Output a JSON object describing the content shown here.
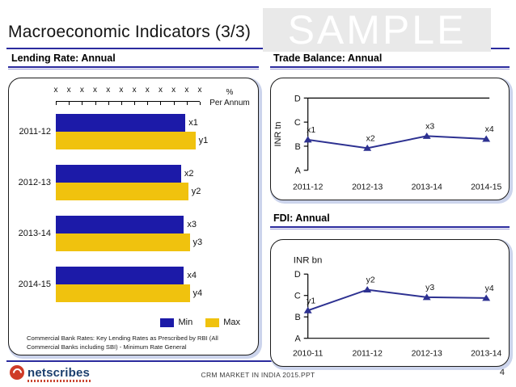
{
  "slide": {
    "title": "Macroeconomic Indicators (3/3)",
    "watermark": "SAMPLE",
    "footer": {
      "logo_text": "netscribes",
      "filename": "CRM MARKET IN INDIA 2015.PPT",
      "page_number": "4"
    }
  },
  "sections": {
    "lending": {
      "header": "Lending Rate: Annual"
    },
    "trade": {
      "header": "Trade Balance: Annual"
    },
    "fdi": {
      "header": "FDI: Annual"
    }
  },
  "colors": {
    "accent_line": "#2b2b9e",
    "bar_min_blue": "#1c1aa8",
    "bar_max_yellow": "#f0c20e",
    "line_navy": "#2d3191",
    "watermark_bg": "#e9e9e9"
  },
  "chart_data": [
    {
      "id": "lending_rate",
      "type": "bar",
      "title": "Lending Rate: Annual",
      "orientation": "horizontal",
      "categories": [
        "2011-12",
        "2012-13",
        "2013-14",
        "2014-15"
      ],
      "series": [
        {
          "name": "Min",
          "color": "#1c1aa8",
          "labels": [
            "x1",
            "x2",
            "x3",
            "x4"
          ],
          "values": [
            0.9,
            0.87,
            0.89,
            0.89
          ]
        },
        {
          "name": "Max",
          "color": "#f0c20e",
          "labels": [
            "y1",
            "y2",
            "y3",
            "y4"
          ],
          "values": [
            0.97,
            0.92,
            0.93,
            0.93
          ]
        }
      ],
      "top_axis": {
        "tick_labels": [
          "x",
          "x",
          "x",
          "x",
          "x",
          "x",
          "x",
          "x",
          "x",
          "x",
          "x",
          "x"
        ],
        "unit_line1": "%",
        "unit_line2": "Per Annum"
      },
      "xlim": [
        0,
        1
      ],
      "legend_position": "bottom-right",
      "grid": false,
      "footnote": "Commercial Bank Rates: Key Lending Rates as Prescribed by RBI (All Commercial Banks including SBI) - Minimum Rate General"
    },
    {
      "id": "trade_balance",
      "type": "line",
      "title": "Trade Balance: Annual",
      "ylabel": "INR tn",
      "ylabel_orientation": "vertical",
      "yticks": [
        "A",
        "B",
        "C",
        "D"
      ],
      "ylim": [
        0,
        3
      ],
      "categories": [
        "2011-12",
        "2012-13",
        "2013-14",
        "2014-15"
      ],
      "series": [
        {
          "name": "Trade Balance",
          "color": "#2d3191",
          "marker": "triangle",
          "labels": [
            "x1",
            "x2",
            "x3",
            "x4"
          ],
          "values": [
            1.27,
            0.92,
            1.42,
            1.3
          ]
        }
      ],
      "border_line": "top",
      "grid": false,
      "legend_position": "none"
    },
    {
      "id": "fdi",
      "type": "line",
      "title": "FDI: Annual",
      "ylabel": "INR bn",
      "ylabel_orientation": "horizontal",
      "yticks": [
        "A",
        "B",
        "C",
        "D"
      ],
      "ylim": [
        0,
        3
      ],
      "categories": [
        "2010-11",
        "2011-12",
        "2012-13",
        "2013-14"
      ],
      "series": [
        {
          "name": "FDI",
          "color": "#2d3191",
          "marker": "triangle",
          "labels": [
            "y1",
            "y2",
            "y3",
            "y4"
          ],
          "values": [
            1.3,
            2.27,
            1.92,
            1.88
          ]
        }
      ],
      "border_line": "bottom",
      "grid": false,
      "legend_position": "none"
    }
  ]
}
